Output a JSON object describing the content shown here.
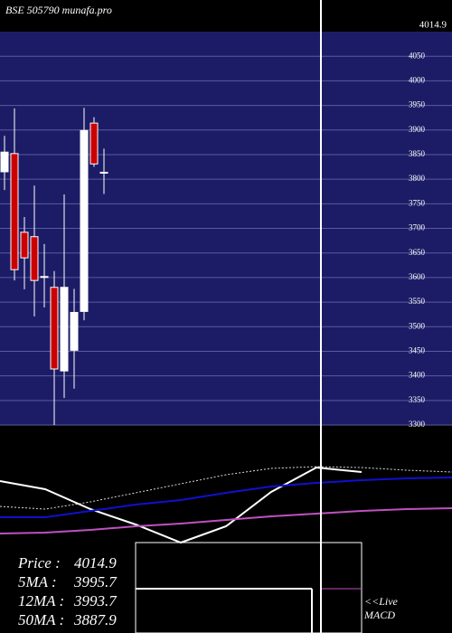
{
  "chart_data": [
    {
      "type": "candlestick",
      "title": "BSE 505790  munafa.pro",
      "ohlc": [
        [
          3815,
          3888,
          3778,
          3855
        ],
        [
          3852,
          3944,
          3594,
          3616
        ],
        [
          3692,
          3723,
          3576,
          3640
        ],
        [
          3683,
          3787,
          3521,
          3594
        ],
        [
          3602,
          3668,
          3539,
          3602
        ],
        [
          3580,
          3613,
          3300,
          3414
        ],
        [
          3410,
          3769,
          3355,
          3580
        ],
        [
          3452,
          3577,
          3374,
          3529
        ],
        [
          3531,
          3945,
          3513,
          3899
        ],
        [
          3914,
          3926,
          3825,
          3831
        ],
        [
          3814,
          3862,
          3770,
          3814
        ]
      ],
      "up_color": "#ffffff",
      "down_color": "#cc0000",
      "ylim": [
        3300,
        4100
      ],
      "yticks": [
        3300,
        3350,
        3400,
        3450,
        3500,
        3550,
        3600,
        3650,
        3700,
        3750,
        3800,
        3850,
        3900,
        3950,
        4000,
        4050
      ],
      "last_label": 4014.9
    },
    {
      "type": "line",
      "x": [
        0,
        50,
        100,
        150,
        200,
        250,
        300,
        350,
        400,
        450,
        500
      ],
      "xlim": [
        0,
        500
      ],
      "ylim": [
        -10,
        130
      ],
      "series": [
        {
          "color": "#ffffff",
          "values": [
            68,
            59,
            37,
            20,
            0,
            18,
            56,
            83,
            78,
            null,
            null
          ]
        },
        {
          "color": "#1010d0",
          "values": [
            28,
            28,
            35,
            42,
            47,
            55,
            62,
            66,
            69,
            71,
            72
          ]
        },
        {
          "color": "#c050c0",
          "values": [
            10,
            11,
            14,
            18,
            21,
            25,
            29,
            32,
            35,
            37,
            38
          ]
        },
        {
          "color": "#dddddd",
          "dashed": true,
          "values": [
            40,
            37,
            45,
            55,
            65,
            75,
            82,
            84,
            83,
            80,
            78
          ]
        }
      ]
    }
  ],
  "info": [
    {
      "label": "Price   :",
      "value": 4014.9
    },
    {
      "label": "5MA :",
      "value": 3995.7
    },
    {
      "label": "12MA :",
      "value": 3993.7
    },
    {
      "label": "50MA :",
      "value": 3887.9
    }
  ],
  "live": "<<Live",
  "macd": "MACD"
}
